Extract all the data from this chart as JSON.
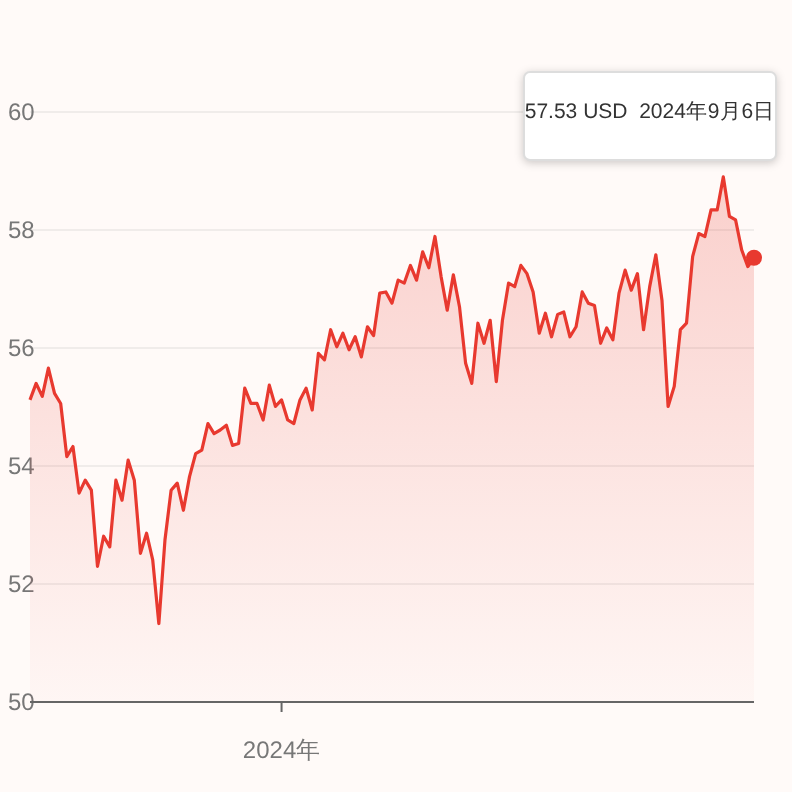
{
  "chart_data": {
    "type": "area",
    "color": "#e8392f",
    "categories": [
      null,
      null,
      null,
      null,
      null,
      null,
      null,
      null,
      null,
      null,
      null,
      null,
      null,
      null,
      null,
      null,
      null,
      null,
      null,
      null,
      null,
      null,
      null,
      null,
      null,
      null,
      null,
      null,
      null,
      null,
      null,
      null,
      null,
      null,
      null,
      null,
      null,
      null,
      null,
      null,
      null,
      "2024年",
      null,
      null,
      null,
      null,
      null,
      null,
      null,
      null,
      null,
      null,
      null,
      null,
      null,
      null,
      null,
      null,
      null,
      null,
      null,
      null,
      null,
      null,
      null,
      null,
      null,
      null,
      null,
      null,
      null,
      null,
      null,
      null,
      null,
      null,
      null,
      null,
      null,
      null,
      null,
      null,
      null,
      null,
      null,
      null,
      null,
      null,
      null,
      null,
      null,
      null,
      null,
      null,
      null,
      null,
      null,
      null,
      null,
      null,
      null,
      null,
      null,
      null,
      null,
      null,
      null,
      null,
      null,
      null,
      null,
      null,
      null,
      null,
      null,
      null,
      null,
      null,
      null
    ],
    "values": [
      55.12,
      55.4,
      55.18,
      55.66,
      55.23,
      55.06,
      54.16,
      54.33,
      53.54,
      53.76,
      53.59,
      52.3,
      52.81,
      52.63,
      53.76,
      53.42,
      54.1,
      53.76,
      52.52,
      52.86,
      52.41,
      51.33,
      52.75,
      53.59,
      53.71,
      53.25,
      53.82,
      54.21,
      54.27,
      54.72,
      54.55,
      54.61,
      54.69,
      54.35,
      54.38,
      55.32,
      55.06,
      55.06,
      54.78,
      55.37,
      55.01,
      55.12,
      54.78,
      54.72,
      55.12,
      55.32,
      54.95,
      55.91,
      55.8,
      56.31,
      56.02,
      56.25,
      55.97,
      56.19,
      55.85,
      56.36,
      56.21,
      56.93,
      56.95,
      56.76,
      57.15,
      57.1,
      57.4,
      57.15,
      57.63,
      57.36,
      57.89,
      57.21,
      56.64,
      57.24,
      56.7,
      55.74,
      55.4,
      56.42,
      56.08,
      56.47,
      55.43,
      56.47,
      57.1,
      57.04,
      57.4,
      57.26,
      56.95,
      56.25,
      56.59,
      56.19,
      56.57,
      56.61,
      56.19,
      56.36,
      56.95,
      56.76,
      56.72,
      56.08,
      56.34,
      56.14,
      56.93,
      57.32,
      56.98,
      57.26,
      56.31,
      57.04,
      57.58,
      56.81,
      55.01,
      55.35,
      56.31,
      56.42,
      57.55,
      57.94,
      57.89,
      58.34,
      58.34,
      58.9,
      58.23,
      58.17,
      57.66,
      57.38,
      57.53
    ],
    "ylim": [
      50,
      60
    ],
    "yticks": [
      50,
      52,
      54,
      56,
      58,
      60
    ],
    "grid": "y",
    "annotations": [
      "57.53 USD  2024年9月6日"
    ]
  }
}
